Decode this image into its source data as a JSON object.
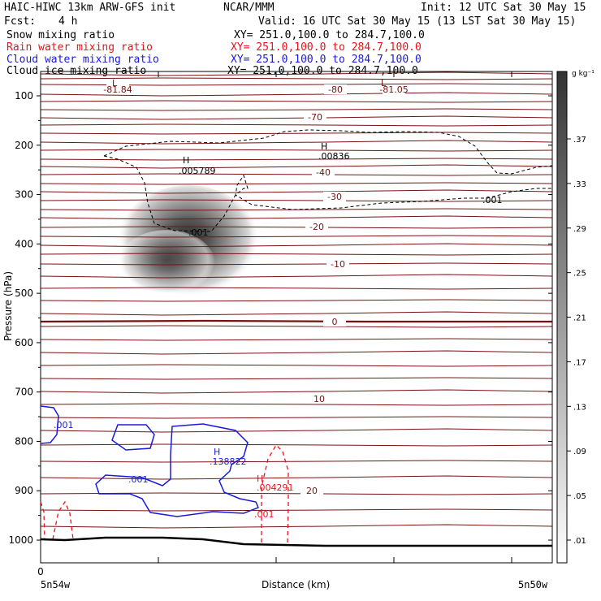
{
  "header": {
    "title": "HAIC-HIWC 13km ARW-GFS init",
    "org": "NCAR/MMM",
    "init": "Init: 12 UTC Sat 30 May 15",
    "fcst_label": "Fcst:",
    "fcst_value": "4 h",
    "valid": "Valid: 16 UTC Sat 30 May 15 (13 LST Sat 30 May 15)"
  },
  "fields": [
    {
      "name": "Snow mixing ratio",
      "xy": "XY= 251.0,100.0 to 284.7,100.0",
      "color": "#000000"
    },
    {
      "name": "Rain water mixing ratio",
      "xy": "XY= 251.0,100.0 to 284.7,100.0",
      "color": "#e8131a"
    },
    {
      "name": "Cloud water mixing ratio",
      "xy": "XY= 251.0,100.0 to 284.7,100.0",
      "color": "#1a1adc"
    },
    {
      "name": "Cloud ice mixing ratio",
      "xy": "XY= 251.0,100.0 to 284.7,100.0",
      "color": "#000000"
    }
  ],
  "chart_data": {
    "type": "cross-section",
    "ylabel": "Pressure (hPa)",
    "xlabel": "Distance (km)",
    "y_ticks": [
      100,
      200,
      300,
      400,
      500,
      600,
      700,
      800,
      900,
      1000
    ],
    "ylim": [
      1050,
      50
    ],
    "x_ticks": [
      "0"
    ],
    "x_end_labels": [
      "5n54w",
      "5n50w"
    ],
    "colorbar": {
      "unit": "g kg⁻¹",
      "ticks": [
        ".01",
        ".05",
        ".09",
        ".13",
        ".17",
        ".21",
        ".25",
        ".29",
        ".33",
        ".37"
      ]
    },
    "temperature_labels": [
      "-81.84",
      "-80",
      "-81.05",
      "-70",
      "-40",
      "-30",
      "-20",
      "-10",
      "0",
      "10",
      "20"
    ],
    "extrema_labels": [
      {
        "kind": "L",
        "value": "-81.84"
      },
      {
        "kind": "L",
        "value": "-81.05"
      },
      {
        "kind": "H",
        "value": ".005789"
      },
      {
        "kind": "H",
        "value": ".00836"
      },
      {
        "kind": "H",
        "value": ".138822"
      },
      {
        "kind": "H",
        "value": ".004291"
      }
    ],
    "contour_labels": [
      ".001",
      ".001",
      ".001",
      ".001",
      ".001"
    ],
    "colors": {
      "temperature": "#7a1010",
      "freezing": "#7a1010",
      "cloud_water": "#1a1adc",
      "rain": "#e8131a",
      "terrain": "#000000"
    }
  }
}
